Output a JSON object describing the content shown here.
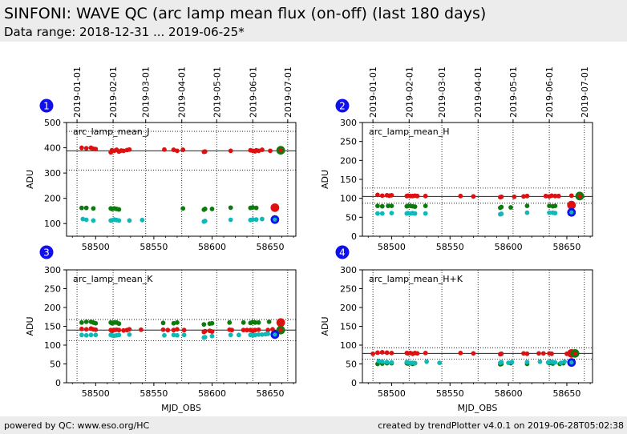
{
  "header": {
    "title": "SINFONI: WAVE QC (arc lamp mean flux (on-off) (last 180 days)",
    "subtitle": "Data range: 2018-12-31 ... 2019-06-25*"
  },
  "footer": {
    "left": "powered by QC: www.eso.org/HC",
    "right": "created by trendPlotter v4.0.1 on 2019-06-28T05:02:38"
  },
  "colors": {
    "red": "#dd1111",
    "green": "#0b7c0b",
    "cyan": "#10b8b8",
    "blue": "#1010ee",
    "panel_badge": "#1010ee"
  },
  "chart_data": [
    {
      "type": "scatter",
      "panel_number": "1",
      "label": "arc_lamp_mean_J",
      "ylabel": "ADU",
      "xlabel": "",
      "xlim": [
        58475,
        58672
      ],
      "ylim": [
        50,
        500
      ],
      "xticks": [
        58500,
        58550,
        58600,
        58650
      ],
      "yticks": [
        100,
        200,
        300,
        400,
        500
      ],
      "date_ticks": [
        "2019-01-01",
        "2019-02-01",
        "2019-03-01",
        "2019-04-01",
        "2019-05-01",
        "2019-06-01",
        "2019-07-01"
      ],
      "hlines_solid": [
        388
      ],
      "hlines_dotted": [
        465,
        312
      ],
      "series": [
        {
          "color": "red",
          "x": [
            58488,
            58492,
            58496,
            58498,
            58500,
            58513,
            58514,
            58516,
            58518,
            58520,
            58522,
            58524,
            58527,
            58529,
            58559,
            58567,
            58570,
            58575,
            58593,
            58594,
            58616,
            58633,
            58635,
            58637,
            58638,
            58640,
            58643,
            58650,
            58658
          ],
          "y": [
            400,
            398,
            400,
            396,
            395,
            382,
            390,
            388,
            392,
            385,
            389,
            388,
            391,
            393,
            393,
            392,
            388,
            392,
            384,
            385,
            388,
            390,
            388,
            386,
            390,
            388,
            392,
            388,
            390
          ]
        },
        {
          "color": "green",
          "x": [
            58488,
            58492,
            58498,
            58513,
            58514,
            58516,
            58518,
            58520,
            58575,
            58593,
            58594,
            58600,
            58616,
            58633,
            58635,
            58638
          ],
          "y": [
            162,
            162,
            160,
            160,
            158,
            160,
            158,
            156,
            160,
            155,
            158,
            158,
            163,
            162,
            164,
            162
          ]
        },
        {
          "color": "cyan",
          "x": [
            58489,
            58492,
            58498,
            58513,
            58514,
            58516,
            58518,
            58520,
            58529,
            58540,
            58593,
            58594,
            58616,
            58633,
            58635,
            58638,
            58643
          ],
          "y": [
            118,
            115,
            112,
            112,
            113,
            116,
            114,
            112,
            112,
            114,
            108,
            110,
            115,
            114,
            116,
            116,
            118
          ]
        }
      ],
      "highlights": [
        {
          "outer": "red",
          "inner": "red",
          "x": 58654,
          "y": 163
        },
        {
          "outer": "blue",
          "inner": "cyan",
          "x": 58654,
          "y": 116
        },
        {
          "outer": "green",
          "inner": "red",
          "x": 58659,
          "y": 390
        }
      ]
    },
    {
      "type": "scatter",
      "panel_number": "2",
      "label": "arc_lamp_mean_H",
      "ylabel": "ADU",
      "xlabel": "",
      "xlim": [
        58475,
        58672
      ],
      "ylim": [
        0,
        300
      ],
      "xticks": [
        58500,
        58550,
        58600,
        58650
      ],
      "yticks": [
        0,
        50,
        100,
        150,
        200,
        250,
        300
      ],
      "date_ticks": [
        "2019-01-01",
        "2019-02-01",
        "2019-03-01",
        "2019-04-01",
        "2019-05-01",
        "2019-06-01",
        "2019-07-01"
      ],
      "hlines_solid": [
        105
      ],
      "hlines_dotted": [
        127,
        87
      ],
      "series": [
        {
          "color": "red",
          "x": [
            58488,
            58492,
            58496,
            58498,
            58500,
            58513,
            58514,
            58516,
            58518,
            58520,
            58522,
            58529,
            58559,
            58570,
            58593,
            58594,
            58605,
            58613,
            58616,
            58632,
            58635,
            58637,
            58640,
            58643,
            58654
          ],
          "y": [
            109,
            107,
            108,
            107,
            108,
            106,
            107,
            106,
            106,
            107,
            106,
            106,
            106,
            105,
            103,
            104,
            104,
            105,
            106,
            106,
            105,
            107,
            106,
            106,
            107
          ]
        },
        {
          "color": "green",
          "x": [
            58488,
            58492,
            58497,
            58500,
            58513,
            58514,
            58516,
            58518,
            58520,
            58529,
            58593,
            58594,
            58602,
            58616,
            58635,
            58638,
            58640
          ],
          "y": [
            80,
            79,
            80,
            80,
            79,
            80,
            80,
            79,
            78,
            80,
            75,
            77,
            76,
            80,
            80,
            79,
            80
          ]
        },
        {
          "color": "cyan",
          "x": [
            58488,
            58492,
            58500,
            58513,
            58514,
            58516,
            58518,
            58520,
            58529,
            58593,
            58594,
            58616,
            58635,
            58638,
            58640
          ],
          "y": [
            60,
            60,
            61,
            60,
            61,
            60,
            61,
            60,
            60,
            58,
            59,
            62,
            62,
            62,
            61
          ]
        }
      ],
      "highlights": [
        {
          "outer": "red",
          "inner": "red",
          "x": 58654,
          "y": 82
        },
        {
          "outer": "blue",
          "inner": "cyan",
          "x": 58654,
          "y": 63
        },
        {
          "outer": "green",
          "inner": "red",
          "x": 58661,
          "y": 106
        }
      ]
    },
    {
      "type": "scatter",
      "panel_number": "3",
      "label": "arc_lamp_mean_K",
      "ylabel": "ADU",
      "xlabel": "MJD_OBS",
      "xlim": [
        58475,
        58672
      ],
      "ylim": [
        0,
        300
      ],
      "xticks": [
        58500,
        58550,
        58600,
        58650
      ],
      "yticks": [
        0,
        50,
        100,
        150,
        200,
        250,
        300
      ],
      "date_ticks": [],
      "hlines_solid": [
        140
      ],
      "hlines_dotted": [
        168,
        112
      ],
      "series": [
        {
          "color": "red",
          "x": [
            58488,
            58492,
            58496,
            58498,
            58500,
            58513,
            58514,
            58516,
            58518,
            58520,
            58524,
            58527,
            58529,
            58539,
            58558,
            58562,
            58567,
            58570,
            58576,
            58593,
            58594,
            58598,
            58600,
            58615,
            58617,
            58627,
            58630,
            58633,
            58635,
            58637,
            58640,
            58648,
            58652
          ],
          "y": [
            143,
            142,
            144,
            142,
            141,
            140,
            138,
            140,
            141,
            140,
            139,
            140,
            142,
            141,
            141,
            140,
            140,
            142,
            140,
            135,
            137,
            138,
            136,
            141,
            140,
            140,
            140,
            140,
            138,
            140,
            141,
            140,
            142
          ]
        },
        {
          "color": "green",
          "x": [
            58488,
            58492,
            58496,
            58498,
            58500,
            58513,
            58514,
            58516,
            58518,
            58520,
            58558,
            58567,
            58570,
            58593,
            58598,
            58600,
            58615,
            58627,
            58633,
            58635,
            58637,
            58640,
            58649
          ],
          "y": [
            160,
            162,
            162,
            160,
            158,
            160,
            158,
            160,
            160,
            157,
            159,
            158,
            160,
            155,
            157,
            158,
            160,
            160,
            159,
            161,
            160,
            160,
            162
          ]
        },
        {
          "color": "cyan",
          "x": [
            58488,
            58492,
            58496,
            58500,
            58513,
            58514,
            58516,
            58518,
            58520,
            58529,
            58559,
            58567,
            58570,
            58576,
            58593,
            58594,
            58600,
            58616,
            58623,
            58633,
            58635,
            58637,
            58640,
            58643,
            58646,
            58648
          ],
          "y": [
            127,
            126,
            127,
            127,
            127,
            126,
            125,
            126,
            127,
            128,
            126,
            127,
            126,
            127,
            120,
            121,
            124,
            127,
            127,
            127,
            126,
            127,
            128,
            128,
            129,
            130
          ]
        }
      ],
      "highlights": [
        {
          "outer": "red",
          "inner": "red",
          "x": 58659,
          "y": 160
        },
        {
          "outer": "green",
          "inner": "red",
          "x": 58659,
          "y": 140
        },
        {
          "outer": "blue",
          "inner": "cyan",
          "x": 58654,
          "y": 128
        }
      ]
    },
    {
      "type": "scatter",
      "panel_number": "4",
      "label": "arc_lamp_mean_H+K",
      "ylabel": "ADU",
      "xlabel": "MJD_OBS",
      "xlim": [
        58475,
        58672
      ],
      "ylim": [
        0,
        300
      ],
      "xticks": [
        58500,
        58550,
        58600,
        58650
      ],
      "yticks": [
        0,
        50,
        100,
        150,
        200,
        250,
        300
      ],
      "date_ticks": [],
      "hlines_solid": [
        78
      ],
      "hlines_dotted": [
        93,
        63
      ],
      "series": [
        {
          "color": "red",
          "x": [
            58484,
            58488,
            58492,
            58496,
            58500,
            58513,
            58514,
            58516,
            58518,
            58520,
            58522,
            58529,
            58559,
            58570,
            58593,
            58594,
            58613,
            58616,
            58626,
            58630,
            58635,
            58637,
            58650
          ],
          "y": [
            77,
            80,
            81,
            80,
            79,
            79,
            78,
            79,
            77,
            79,
            78,
            79,
            79,
            78,
            76,
            77,
            78,
            77,
            78,
            78,
            78,
            77,
            77
          ]
        },
        {
          "color": "green",
          "x": [
            58488,
            58492,
            58496,
            58500,
            58513,
            58514,
            58516,
            58518,
            58520,
            58593,
            58594,
            58602,
            58616,
            58635,
            58638,
            58644,
            58647
          ],
          "y": [
            50,
            51,
            52,
            52,
            52,
            51,
            52,
            50,
            52,
            49,
            50,
            52,
            50,
            52,
            51,
            50,
            52
          ]
        },
        {
          "color": "cyan",
          "x": [
            58489,
            58492,
            58496,
            58500,
            58513,
            58514,
            58516,
            58518,
            58520,
            58530,
            58541,
            58593,
            58594,
            58600,
            58603,
            58616,
            58627,
            58634,
            58636,
            58638,
            58640,
            58645,
            58648
          ],
          "y": [
            58,
            56,
            55,
            54,
            55,
            54,
            53,
            53,
            52,
            56,
            53,
            53,
            55,
            53,
            55,
            55,
            56,
            54,
            56,
            55,
            54,
            53,
            56
          ]
        }
      ],
      "highlights": [
        {
          "outer": "red",
          "inner": "red",
          "x": 58654,
          "y": 78
        },
        {
          "outer": "blue",
          "inner": "cyan",
          "x": 58654,
          "y": 54
        },
        {
          "outer": "green",
          "inner": "red",
          "x": 58657,
          "y": 78
        }
      ]
    }
  ]
}
